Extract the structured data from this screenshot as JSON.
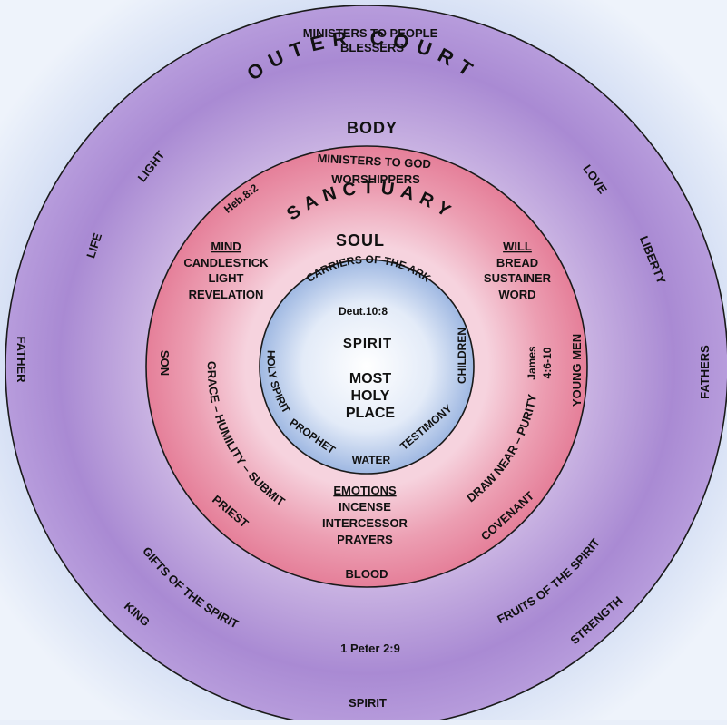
{
  "outer_court": {
    "top_line1": "MINISTERS TO PEOPLE",
    "top_line2": "BLESSERS",
    "title": "OUTER COURT",
    "part": "BODY",
    "left": [
      "LIGHT",
      "LIFE",
      "FATHER"
    ],
    "right": [
      "LOVE",
      "LIBERTY",
      "FATHERS"
    ],
    "bottom_left": [
      "GIFTS OF THE SPIRIT",
      "KING"
    ],
    "bottom_right": [
      "FRUITS OF THE SPIRIT",
      "STRENGTH"
    ],
    "reference": "1 Peter 2:9",
    "bottom": "SPIRIT"
  },
  "sanctuary": {
    "top_line1": "MINISTERS TO GOD",
    "top_line2": "WORSHIPPERS",
    "verse": "Heb.8:2",
    "title": "SANCTUARY",
    "part": "SOUL",
    "mind": {
      "heading": "MIND",
      "items": [
        "CANDLESTICK",
        "LIGHT",
        "REVELATION"
      ]
    },
    "will": {
      "heading": "WILL",
      "items": [
        "BREAD",
        "SUSTAINER",
        "WORD"
      ]
    },
    "emotions": {
      "heading": "EMOTIONS",
      "items": [
        "INCENSE",
        "INTERCESSOR",
        "PRAYERS"
      ]
    },
    "son": "SON",
    "grace_line": "GRACE – HUMILITY – SUBMIT",
    "priest": "PRIEST",
    "covenant": "COVENANT",
    "draw_near": "DRAW NEAR – PURITY",
    "young_men": "YOUNG MEN",
    "james": "James",
    "james_ref": "4:6-10",
    "bottom": "BLOOD"
  },
  "most_holy": {
    "carriers": "CARRIERS OF THE ARK",
    "verse": "Deut.10:8",
    "spirit": "SPIRIT",
    "title_lines": [
      "MOST",
      "HOLY",
      "PLACE"
    ],
    "holy_spirit": "HOLY SPIRIT",
    "prophet": "PROPHET",
    "water": "WATER",
    "testimony": "TESTIMONY",
    "children": "CHILDREN"
  },
  "colors": {
    "background": "#e7eef9",
    "outer_ring": "#b99ad8",
    "sanctuary_ring": "#ea8fa4",
    "most_holy": "#c8d8ef",
    "outline": "#1a1a1a"
  }
}
